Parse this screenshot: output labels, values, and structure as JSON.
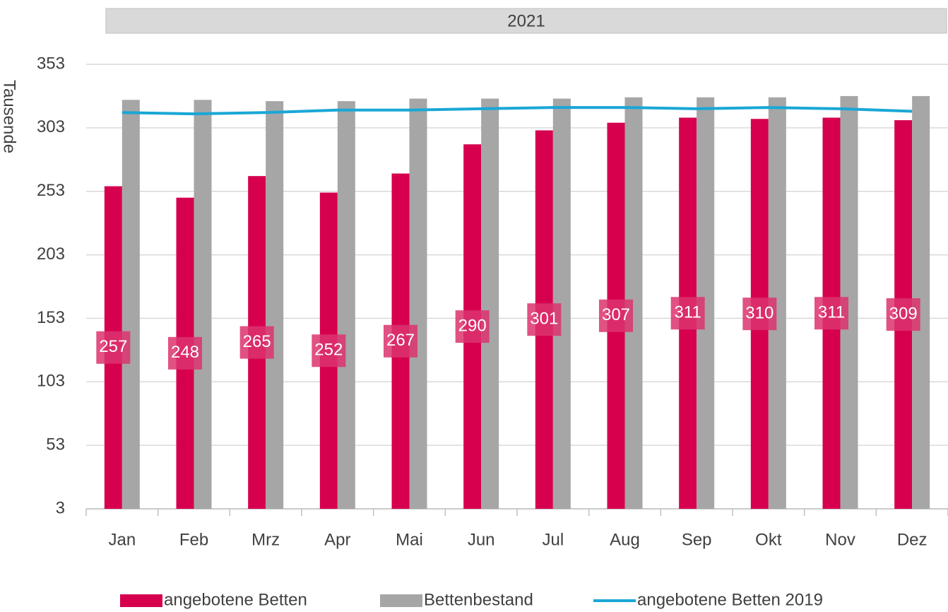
{
  "chart_data": {
    "type": "bar",
    "panel_label": "2021",
    "y_label": "Tausende",
    "categories": [
      "Jan",
      "Feb",
      "Mrz",
      "Apr",
      "Mai",
      "Jun",
      "Jul",
      "Aug",
      "Sep",
      "Okt",
      "Nov",
      "Dez"
    ],
    "series": [
      {
        "name": "angebotene Betten",
        "type": "bar",
        "color": "#d6004f",
        "values": [
          257,
          248,
          265,
          252,
          267,
          290,
          301,
          307,
          311,
          310,
          311,
          309
        ],
        "data_labels": true
      },
      {
        "name": "Bettenbestand",
        "type": "bar",
        "color": "#a6a6a6",
        "values": [
          325,
          325,
          324,
          324,
          326,
          326,
          326,
          327,
          327,
          327,
          328,
          328
        ]
      },
      {
        "name": "angebotene Betten 2019",
        "type": "line",
        "color": "#1aa7d6",
        "values": [
          315,
          314,
          315,
          317,
          317,
          318,
          319,
          319,
          318,
          319,
          318,
          316
        ]
      }
    ],
    "ylim": [
      3,
      353
    ],
    "yticks": [
      3,
      53,
      103,
      153,
      203,
      253,
      303,
      353
    ],
    "grid": true,
    "legend": "bottom"
  }
}
